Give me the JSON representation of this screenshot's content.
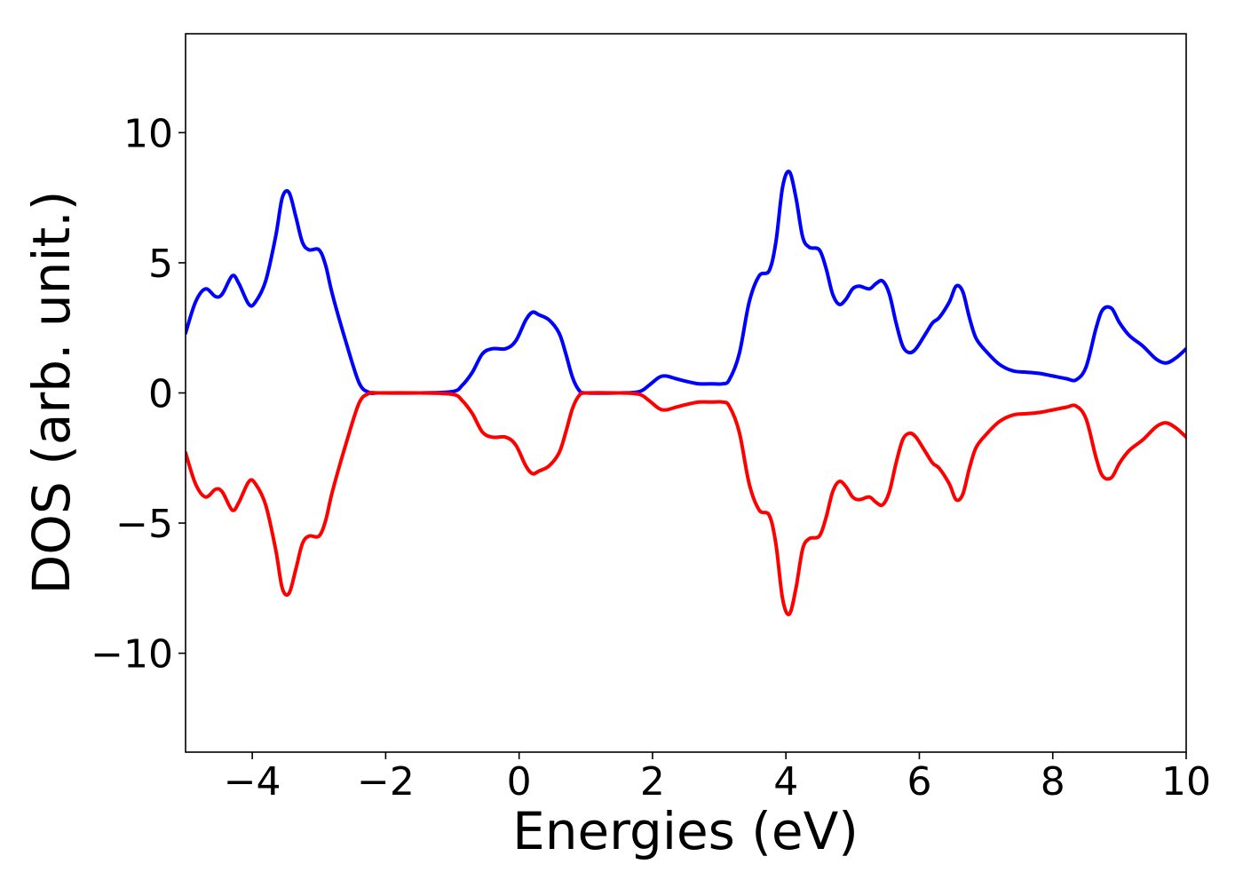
{
  "chart_data": {
    "type": "line",
    "title": "",
    "xlabel": "Energies (eV)",
    "ylabel": "DOS (arb. unit.)",
    "xlim": [
      -5,
      10
    ],
    "ylim": [
      -13.8,
      13.8
    ],
    "xticks": [
      -4,
      -2,
      0,
      2,
      4,
      6,
      8,
      10
    ],
    "xtick_labels": [
      "−4",
      "−2",
      "0",
      "2",
      "4",
      "6",
      "8",
      "10"
    ],
    "yticks": [
      10,
      5,
      0,
      -5,
      -10
    ],
    "ytick_labels": [
      "10",
      "5",
      "0",
      "−5",
      "−10"
    ],
    "grid": false,
    "legend": "none",
    "series": [
      {
        "color": "#0000ff",
        "x": [
          -5.0,
          -4.85,
          -4.7,
          -4.55,
          -4.45,
          -4.3,
          -4.2,
          -4.05,
          -3.95,
          -3.8,
          -3.65,
          -3.55,
          -3.45,
          -3.35,
          -3.25,
          -3.15,
          -3.0,
          -2.9,
          -2.8,
          -2.6,
          -2.4,
          -2.25,
          -2.1,
          -1.5,
          -1.0,
          -0.85,
          -0.7,
          -0.55,
          -0.4,
          -0.2,
          -0.05,
          0.1,
          0.2,
          0.3,
          0.45,
          0.6,
          0.7,
          0.8,
          0.9,
          1.0,
          1.5,
          1.8,
          1.95,
          2.1,
          2.2,
          2.35,
          2.5,
          2.7,
          2.9,
          3.05,
          3.15,
          3.3,
          3.45,
          3.6,
          3.75,
          3.85,
          3.95,
          4.05,
          4.15,
          4.25,
          4.35,
          4.5,
          4.6,
          4.7,
          4.8,
          4.9,
          5.0,
          5.1,
          5.25,
          5.35,
          5.45,
          5.55,
          5.65,
          5.75,
          5.85,
          5.95,
          6.1,
          6.2,
          6.3,
          6.45,
          6.55,
          6.65,
          6.75,
          6.85,
          7.0,
          7.2,
          7.4,
          7.6,
          7.8,
          8.0,
          8.2,
          8.35,
          8.5,
          8.65,
          8.75,
          8.88,
          9.0,
          9.15,
          9.35,
          9.55,
          9.7,
          9.85,
          10.0
        ],
        "y": [
          2.3,
          3.5,
          4.0,
          3.7,
          3.8,
          4.5,
          4.2,
          3.4,
          3.5,
          4.3,
          6.0,
          7.5,
          7.7,
          6.8,
          5.8,
          5.5,
          5.5,
          4.9,
          3.8,
          2.0,
          0.4,
          0.02,
          0.0,
          0.0,
          0.05,
          0.3,
          0.8,
          1.5,
          1.7,
          1.7,
          2.0,
          2.8,
          3.1,
          3.0,
          2.8,
          2.3,
          1.5,
          0.6,
          0.1,
          0.0,
          0.0,
          0.05,
          0.3,
          0.6,
          0.65,
          0.55,
          0.45,
          0.35,
          0.35,
          0.35,
          0.5,
          1.5,
          3.5,
          4.5,
          4.7,
          5.8,
          7.9,
          8.5,
          7.5,
          6.0,
          5.6,
          5.5,
          4.8,
          3.8,
          3.4,
          3.6,
          4.0,
          4.1,
          4.0,
          4.2,
          4.3,
          3.8,
          2.7,
          1.8,
          1.55,
          1.7,
          2.3,
          2.7,
          2.9,
          3.5,
          4.1,
          3.9,
          2.9,
          2.1,
          1.6,
          1.1,
          0.85,
          0.8,
          0.75,
          0.65,
          0.55,
          0.5,
          1.0,
          2.5,
          3.2,
          3.25,
          2.7,
          2.2,
          1.8,
          1.3,
          1.15,
          1.35,
          1.7
        ]
      },
      {
        "color": "#ff0000",
        "x": [
          -5.0,
          -4.85,
          -4.7,
          -4.55,
          -4.45,
          -4.3,
          -4.2,
          -4.05,
          -3.95,
          -3.8,
          -3.65,
          -3.55,
          -3.45,
          -3.35,
          -3.25,
          -3.15,
          -3.0,
          -2.9,
          -2.8,
          -2.6,
          -2.4,
          -2.25,
          -2.1,
          -1.5,
          -1.0,
          -0.85,
          -0.7,
          -0.55,
          -0.4,
          -0.2,
          -0.05,
          0.1,
          0.2,
          0.3,
          0.45,
          0.6,
          0.7,
          0.8,
          0.9,
          1.0,
          1.5,
          1.8,
          1.95,
          2.1,
          2.2,
          2.35,
          2.5,
          2.7,
          2.9,
          3.05,
          3.15,
          3.3,
          3.45,
          3.6,
          3.75,
          3.85,
          3.95,
          4.05,
          4.15,
          4.25,
          4.35,
          4.5,
          4.6,
          4.7,
          4.8,
          4.9,
          5.0,
          5.1,
          5.25,
          5.35,
          5.45,
          5.55,
          5.65,
          5.75,
          5.85,
          5.95,
          6.1,
          6.2,
          6.3,
          6.45,
          6.55,
          6.65,
          6.75,
          6.85,
          7.0,
          7.2,
          7.4,
          7.6,
          7.8,
          8.0,
          8.2,
          8.35,
          8.5,
          8.65,
          8.75,
          8.88,
          9.0,
          9.15,
          9.35,
          9.55,
          9.7,
          9.85,
          10.0
        ],
        "y": [
          -2.3,
          -3.5,
          -4.0,
          -3.7,
          -3.8,
          -4.5,
          -4.2,
          -3.4,
          -3.5,
          -4.3,
          -6.0,
          -7.5,
          -7.7,
          -6.8,
          -5.8,
          -5.5,
          -5.5,
          -4.9,
          -3.8,
          -2.0,
          -0.4,
          -0.02,
          0.0,
          0.0,
          -0.05,
          -0.3,
          -0.8,
          -1.5,
          -1.7,
          -1.7,
          -2.0,
          -2.8,
          -3.1,
          -3.0,
          -2.8,
          -2.3,
          -1.5,
          -0.6,
          -0.1,
          0.0,
          0.0,
          -0.05,
          -0.3,
          -0.6,
          -0.65,
          -0.55,
          -0.45,
          -0.35,
          -0.35,
          -0.35,
          -0.5,
          -1.5,
          -3.5,
          -4.5,
          -4.7,
          -5.8,
          -7.9,
          -8.5,
          -7.5,
          -6.0,
          -5.6,
          -5.5,
          -4.8,
          -3.8,
          -3.4,
          -3.6,
          -4.0,
          -4.1,
          -4.0,
          -4.2,
          -4.3,
          -3.8,
          -2.7,
          -1.8,
          -1.55,
          -1.7,
          -2.3,
          -2.7,
          -2.9,
          -3.5,
          -4.1,
          -3.9,
          -2.9,
          -2.1,
          -1.6,
          -1.1,
          -0.85,
          -0.8,
          -0.75,
          -0.65,
          -0.55,
          -0.5,
          -1.0,
          -2.5,
          -3.2,
          -3.25,
          -2.7,
          -2.2,
          -1.8,
          -1.3,
          -1.15,
          -1.35,
          -1.7
        ]
      }
    ]
  }
}
